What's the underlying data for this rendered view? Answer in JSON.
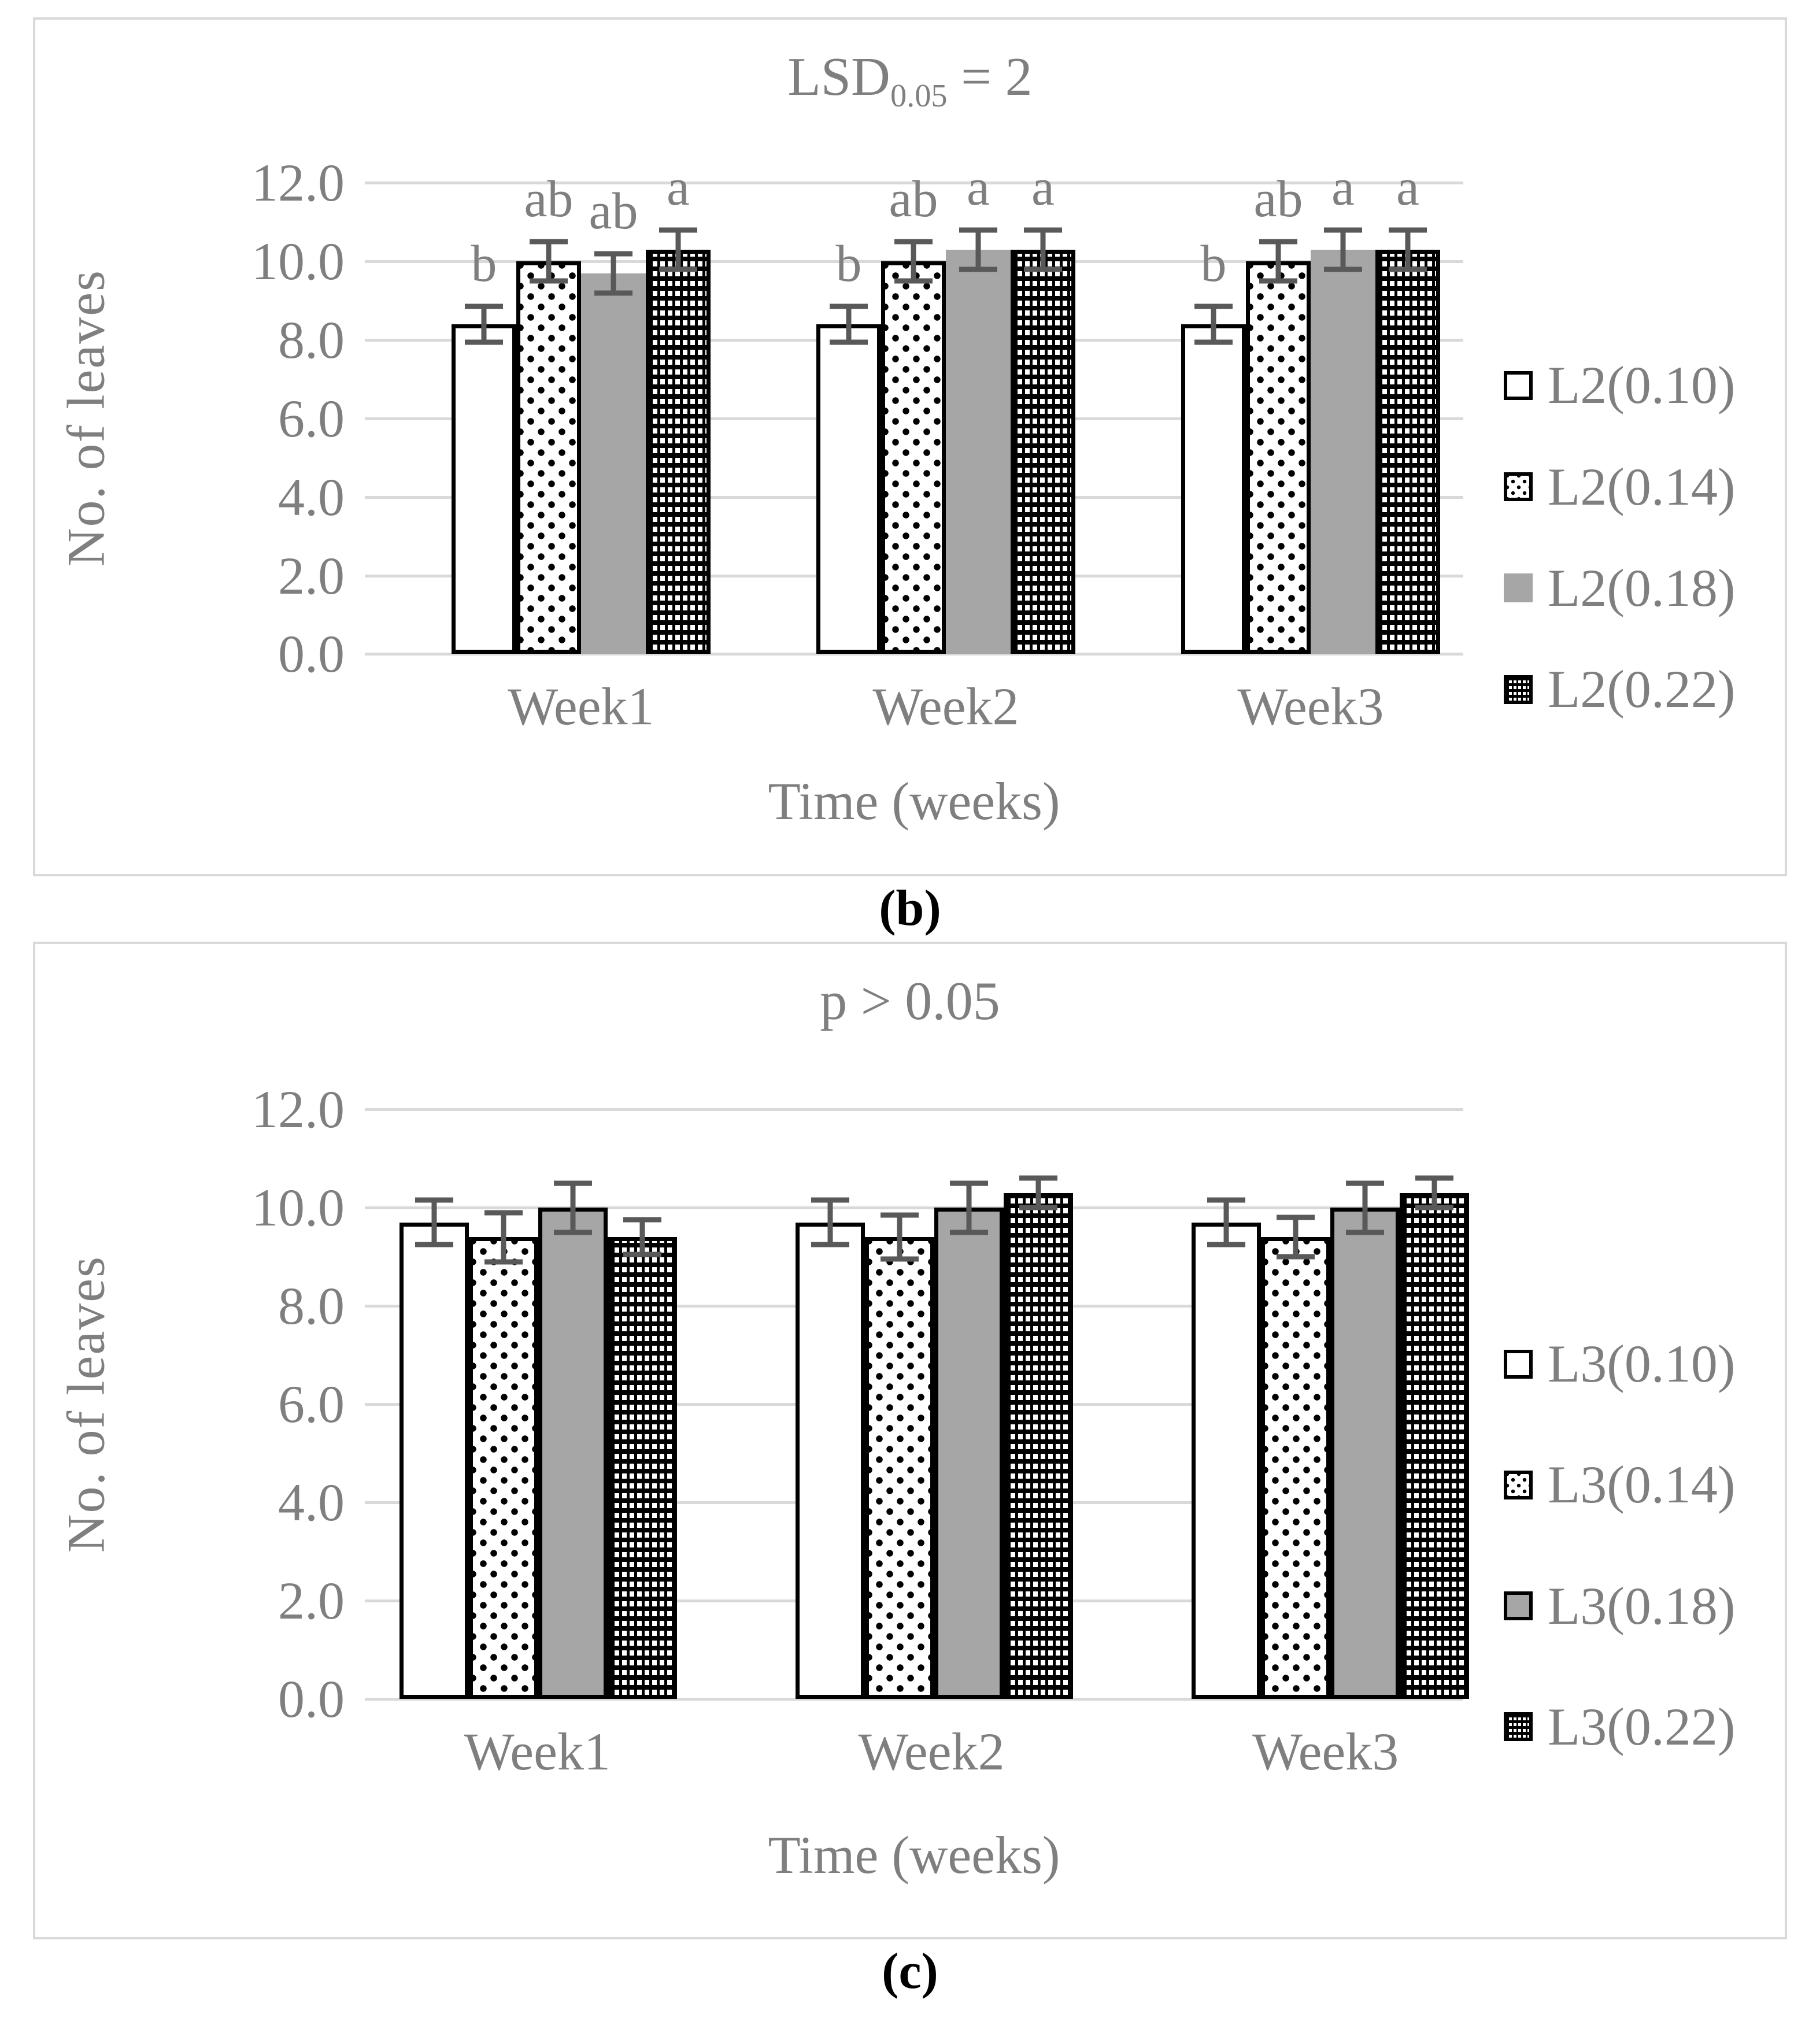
{
  "colors": {
    "text_gray": "#7f7f7f",
    "gridline": "#d9d9d9",
    "error_bar": "#595959",
    "bar_gray_fill": "#a6a6a6",
    "bar_black": "#000000",
    "box_border": "#d9d9d9"
  },
  "chart_data": [
    {
      "type": "bar",
      "panel": "b",
      "caption": "(b)",
      "title": {
        "prefix": "LSD",
        "sub": "0.05",
        "suffix": " = 2"
      },
      "ylabel": "No. of leaves",
      "xlabel": "Time (weeks)",
      "ylim": [
        0,
        12
      ],
      "yticks": [
        12,
        10,
        8,
        6,
        4,
        2,
        0
      ],
      "ytick_labels": [
        "12.0",
        "10.0",
        "8.0",
        "6.0",
        "4.0",
        "2.0",
        "0.0"
      ],
      "categories": [
        "Week1",
        "Week2",
        "Week3"
      ],
      "grid": true,
      "legend_position": "right",
      "series": [
        {
          "name": "L2(0.10)",
          "pattern": "white",
          "outlined": true,
          "values": [
            8.4,
            8.4,
            8.4
          ],
          "errors": [
            0.45,
            0.45,
            0.45
          ],
          "letters": [
            "b",
            "b",
            "b"
          ]
        },
        {
          "name": "L2(0.14)",
          "pattern": "dotted",
          "outlined": true,
          "values": [
            10.0,
            10.0,
            10.0
          ],
          "errors": [
            0.5,
            0.5,
            0.5
          ],
          "letters": [
            "ab",
            "ab",
            "ab"
          ]
        },
        {
          "name": "L2(0.18)",
          "pattern": "gray",
          "outlined": false,
          "values": [
            9.7,
            10.3,
            10.3
          ],
          "errors": [
            0.5,
            0.5,
            0.5
          ],
          "letters": [
            "ab",
            "a",
            "a"
          ]
        },
        {
          "name": "L2(0.22)",
          "pattern": "checker",
          "outlined": true,
          "values": [
            10.3,
            10.3,
            10.3
          ],
          "errors": [
            0.5,
            0.5,
            0.5
          ],
          "letters": [
            "a",
            "a",
            "a"
          ]
        }
      ]
    },
    {
      "type": "bar",
      "panel": "c",
      "caption": "(c)",
      "title": {
        "text": "p > 0.05"
      },
      "ylabel": "No. of leaves",
      "xlabel": "Time (weeks)",
      "ylim": [
        0,
        12
      ],
      "yticks": [
        12,
        10,
        8,
        6,
        4,
        2,
        0
      ],
      "ytick_labels": [
        "12.0",
        "10.0",
        "8.0",
        "6.0",
        "4.0",
        "2.0",
        "0.0"
      ],
      "categories": [
        "Week1",
        "Week2",
        "Week3"
      ],
      "grid": true,
      "legend_position": "right",
      "series": [
        {
          "name": "L3(0.10)",
          "pattern": "white",
          "outlined": true,
          "values": [
            9.7,
            9.7,
            9.7
          ],
          "errors": [
            0.45,
            0.45,
            0.45
          ],
          "letters": []
        },
        {
          "name": "L3(0.14)",
          "pattern": "dotted",
          "outlined": true,
          "values": [
            9.4,
            9.4,
            9.4
          ],
          "errors": [
            0.5,
            0.45,
            0.4
          ],
          "letters": []
        },
        {
          "name": "L3(0.18)",
          "pattern": "gray",
          "outlined": true,
          "values": [
            10.0,
            10.0,
            10.0
          ],
          "errors": [
            0.5,
            0.5,
            0.5
          ],
          "letters": []
        },
        {
          "name": "L3(0.22)",
          "pattern": "checker",
          "outlined": true,
          "values": [
            9.4,
            10.3,
            10.3
          ],
          "errors": [
            0.35,
            0.3,
            0.3
          ],
          "letters": []
        }
      ]
    }
  ]
}
